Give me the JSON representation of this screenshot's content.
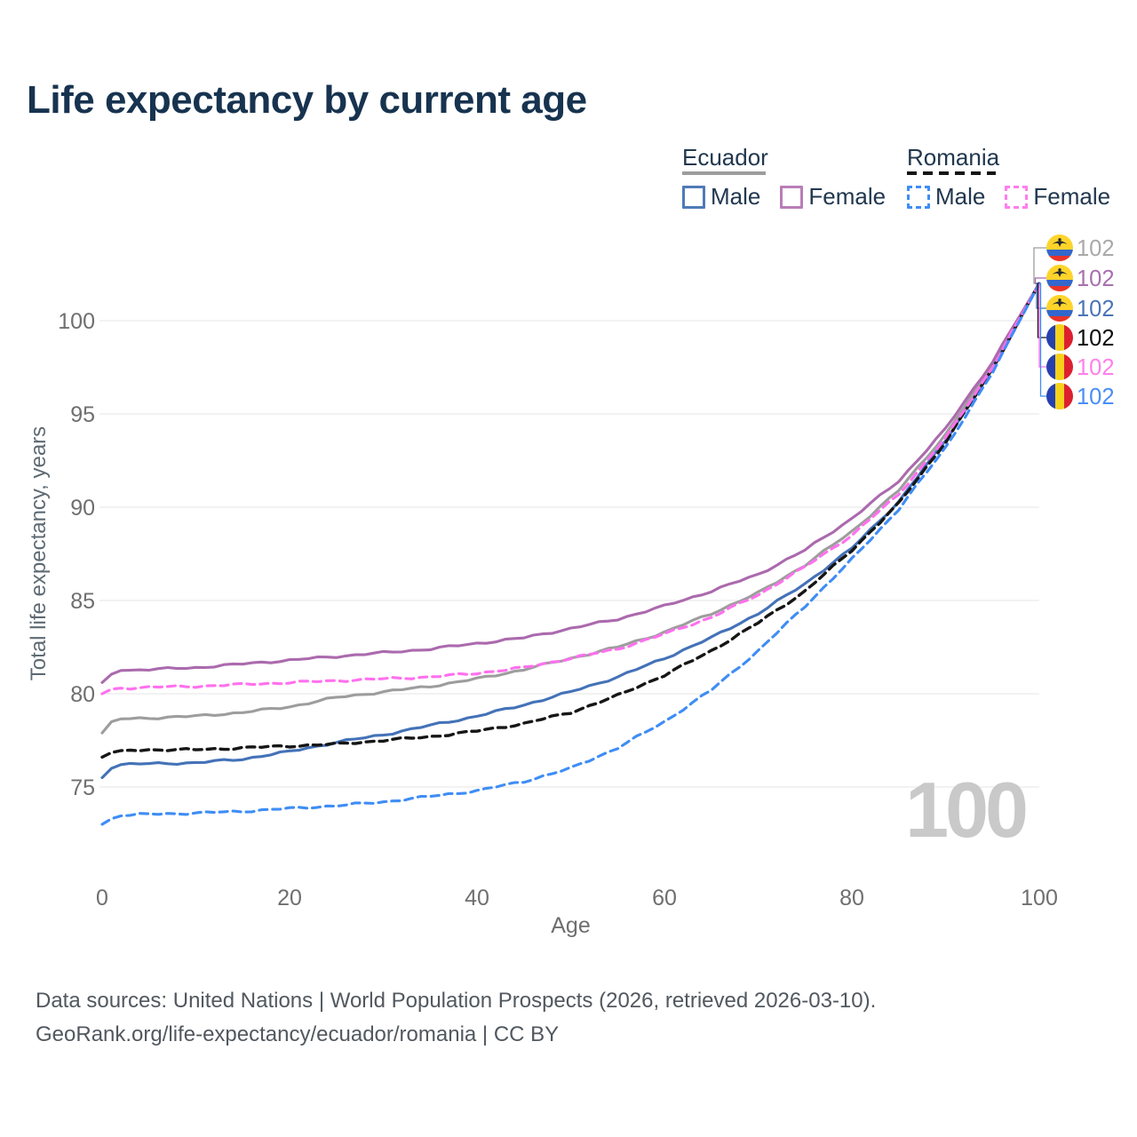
{
  "header": {
    "title": "Life expectancy by current age"
  },
  "legend": {
    "groups": [
      {
        "country": "Ecuador",
        "line_style": "solid",
        "line_color": "#9d9d9d",
        "items": [
          {
            "label": "Male",
            "color": "#4f7ab8",
            "dashed": false
          },
          {
            "label": "Female",
            "color": "#b97db8",
            "dashed": false
          }
        ]
      },
      {
        "country": "Romania",
        "line_style": "dashed",
        "line_color": "#141414",
        "items": [
          {
            "label": "Male",
            "color": "#3f8df5",
            "dashed": true
          },
          {
            "label": "Female",
            "color": "#ff7dee",
            "dashed": true
          }
        ]
      }
    ]
  },
  "chart_data": {
    "type": "line",
    "title": "Life expectancy by current age",
    "xlabel": "Age",
    "ylabel": "Total life expectancy, years",
    "x_ticks": [
      0,
      20,
      40,
      60,
      80,
      100
    ],
    "y_ticks": [
      75,
      80,
      85,
      90,
      95,
      100
    ],
    "xlim": [
      0,
      100
    ],
    "ylim": [
      73,
      102.5
    ],
    "grid": "horizontal",
    "age_indicator": "100",
    "control_ages": [
      0,
      1,
      2,
      5,
      10,
      15,
      20,
      25,
      30,
      35,
      40,
      45,
      50,
      55,
      60,
      65,
      70,
      75,
      80,
      85,
      90,
      95,
      100
    ],
    "series": [
      {
        "name": "Ecuador",
        "sex": "all",
        "flag": "ecuador",
        "color": "#9d9d9d",
        "label_color": "#a9a9a9",
        "dashed": false,
        "end_label": "102",
        "values": [
          77.9,
          78.5,
          78.65,
          78.7,
          78.8,
          79.0,
          79.3,
          79.8,
          80.1,
          80.4,
          80.8,
          81.3,
          81.9,
          82.5,
          83.3,
          84.3,
          85.4,
          86.9,
          88.7,
          90.9,
          93.9,
          97.6,
          102
        ]
      },
      {
        "name": "Ecuador Female",
        "sex": "female",
        "flag": "ecuador",
        "color": "#ab6aad",
        "label_color": "#a86fae",
        "dashed": false,
        "end_label": "102",
        "values": [
          80.6,
          81.05,
          81.25,
          81.3,
          81.4,
          81.6,
          81.8,
          82.0,
          82.2,
          82.4,
          82.7,
          83.0,
          83.5,
          84.0,
          84.7,
          85.5,
          86.4,
          87.7,
          89.4,
          91.4,
          94.2,
          97.8,
          102
        ]
      },
      {
        "name": "Ecuador Male",
        "sex": "male",
        "flag": "ecuador",
        "color": "#4472b8",
        "label_color": "#4a74b8",
        "dashed": false,
        "end_label": "102",
        "values": [
          75.5,
          76.0,
          76.2,
          76.25,
          76.3,
          76.5,
          76.9,
          77.4,
          77.8,
          78.3,
          78.8,
          79.4,
          80.1,
          80.9,
          81.9,
          83.0,
          84.3,
          85.9,
          87.8,
          90.3,
          93.6,
          97.4,
          102
        ]
      },
      {
        "name": "Romania",
        "sex": "all",
        "flag": "romania",
        "color": "#161616",
        "label_color": "#0a0a0a",
        "dashed": true,
        "end_label": "102",
        "values": [
          76.6,
          76.85,
          76.95,
          77.0,
          77.0,
          77.1,
          77.2,
          77.3,
          77.5,
          77.7,
          78.0,
          78.4,
          79.0,
          79.9,
          81.0,
          82.3,
          83.8,
          85.5,
          87.7,
          90.2,
          93.5,
          97.4,
          102
        ]
      },
      {
        "name": "Romania Female",
        "sex": "female",
        "flag": "romania",
        "color": "#ff70ee",
        "label_color": "#ff80e8",
        "dashed": true,
        "end_label": "102",
        "values": [
          80.0,
          80.25,
          80.3,
          80.35,
          80.4,
          80.5,
          80.6,
          80.7,
          80.8,
          80.9,
          81.1,
          81.4,
          81.9,
          82.4,
          83.2,
          84.1,
          85.3,
          86.8,
          88.5,
          90.7,
          93.7,
          97.5,
          102
        ]
      },
      {
        "name": "Romania Male",
        "sex": "male",
        "flag": "romania",
        "color": "#3f8df5",
        "label_color": "#4a8ef5",
        "dashed": true,
        "end_label": "102",
        "values": [
          73.0,
          73.3,
          73.45,
          73.55,
          73.6,
          73.7,
          73.85,
          74.0,
          74.2,
          74.5,
          74.8,
          75.3,
          76.0,
          77.1,
          78.5,
          80.2,
          82.3,
          84.7,
          87.2,
          89.9,
          93.2,
          97.2,
          102
        ]
      }
    ],
    "flag_colors": {
      "ecuador": {
        "yellow": "#ffd42a",
        "blue": "#3367cc",
        "red": "#e8332a",
        "crest": "#23282e"
      },
      "romania": {
        "blue": "#2640b0",
        "yellow": "#f6d21c",
        "red": "#dd2030"
      }
    }
  },
  "footer": {
    "line1": "Data sources: United Nations | World Population Prospects (2026, retrieved 2026-03-10).",
    "line2": "GeoRank.org/life-expectancy/ecuador/romania | CC BY"
  }
}
